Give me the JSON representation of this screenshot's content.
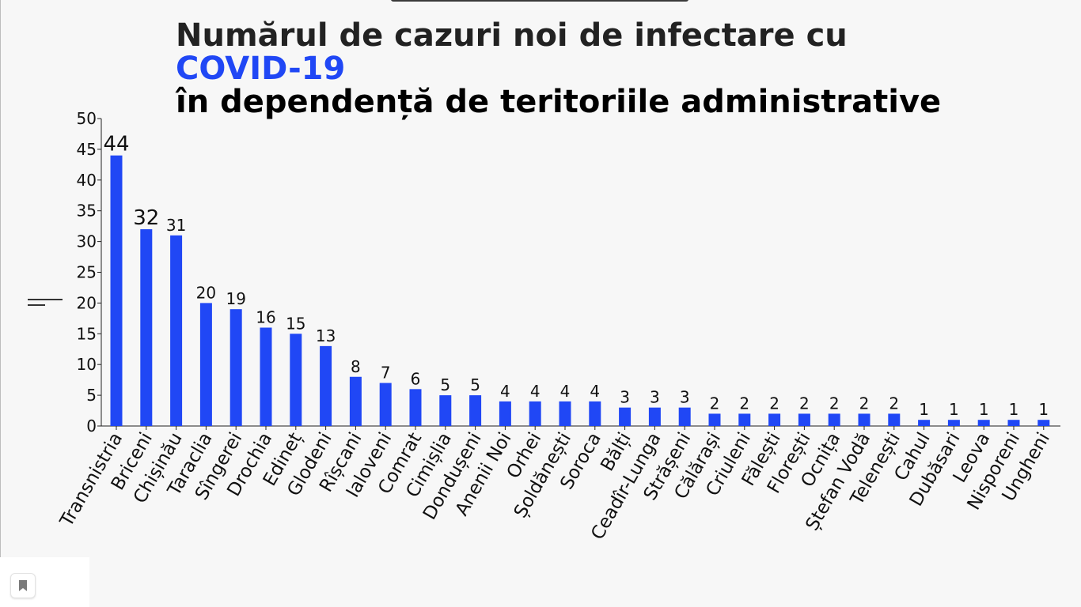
{
  "title": {
    "line1": "Numărul de cazuri noi de infectare cu",
    "line2": "COVID-19",
    "line3": "în dependență de teritoriile administrative"
  },
  "colors": {
    "bar": "#2047f5",
    "accent": "#2047f5",
    "text": "#111111"
  },
  "icons": {
    "legend_toggle": "menu-lines-icon",
    "bookmark": "bookmark-icon"
  },
  "chart_data": {
    "type": "bar",
    "categories": [
      "Transnistria",
      "Briceni",
      "Chișinău",
      "Taraclia",
      "Sîngerei",
      "Drochia",
      "Edineț",
      "Glodeni",
      "Rîșcani",
      "Ialoveni",
      "Comrat",
      "Cimișlia",
      "Dondușeni",
      "Anenii Noi",
      "Orhei",
      "Șoldănești",
      "Soroca",
      "Bălți",
      "Ceadîr-Lunga",
      "Strășeni",
      "Călărași",
      "Criuleni",
      "Fălești",
      "Florești",
      "Ocnița",
      "Ștefan Vodă",
      "Telenești",
      "Cahul",
      "Dubăsari",
      "Leova",
      "Nisporeni",
      "Ungheni"
    ],
    "values": [
      44,
      32,
      31,
      20,
      19,
      16,
      15,
      13,
      8,
      7,
      6,
      5,
      5,
      4,
      4,
      4,
      4,
      3,
      3,
      3,
      2,
      2,
      2,
      2,
      2,
      2,
      2,
      1,
      1,
      1,
      1,
      1
    ],
    "ylim": [
      0,
      50
    ],
    "yticks": [
      "0",
      "5",
      "10",
      "15",
      "20",
      "25",
      "30",
      "35",
      "40",
      "45",
      "50"
    ],
    "xlabel": "",
    "ylabel": "",
    "grid": false,
    "legend": "none"
  }
}
